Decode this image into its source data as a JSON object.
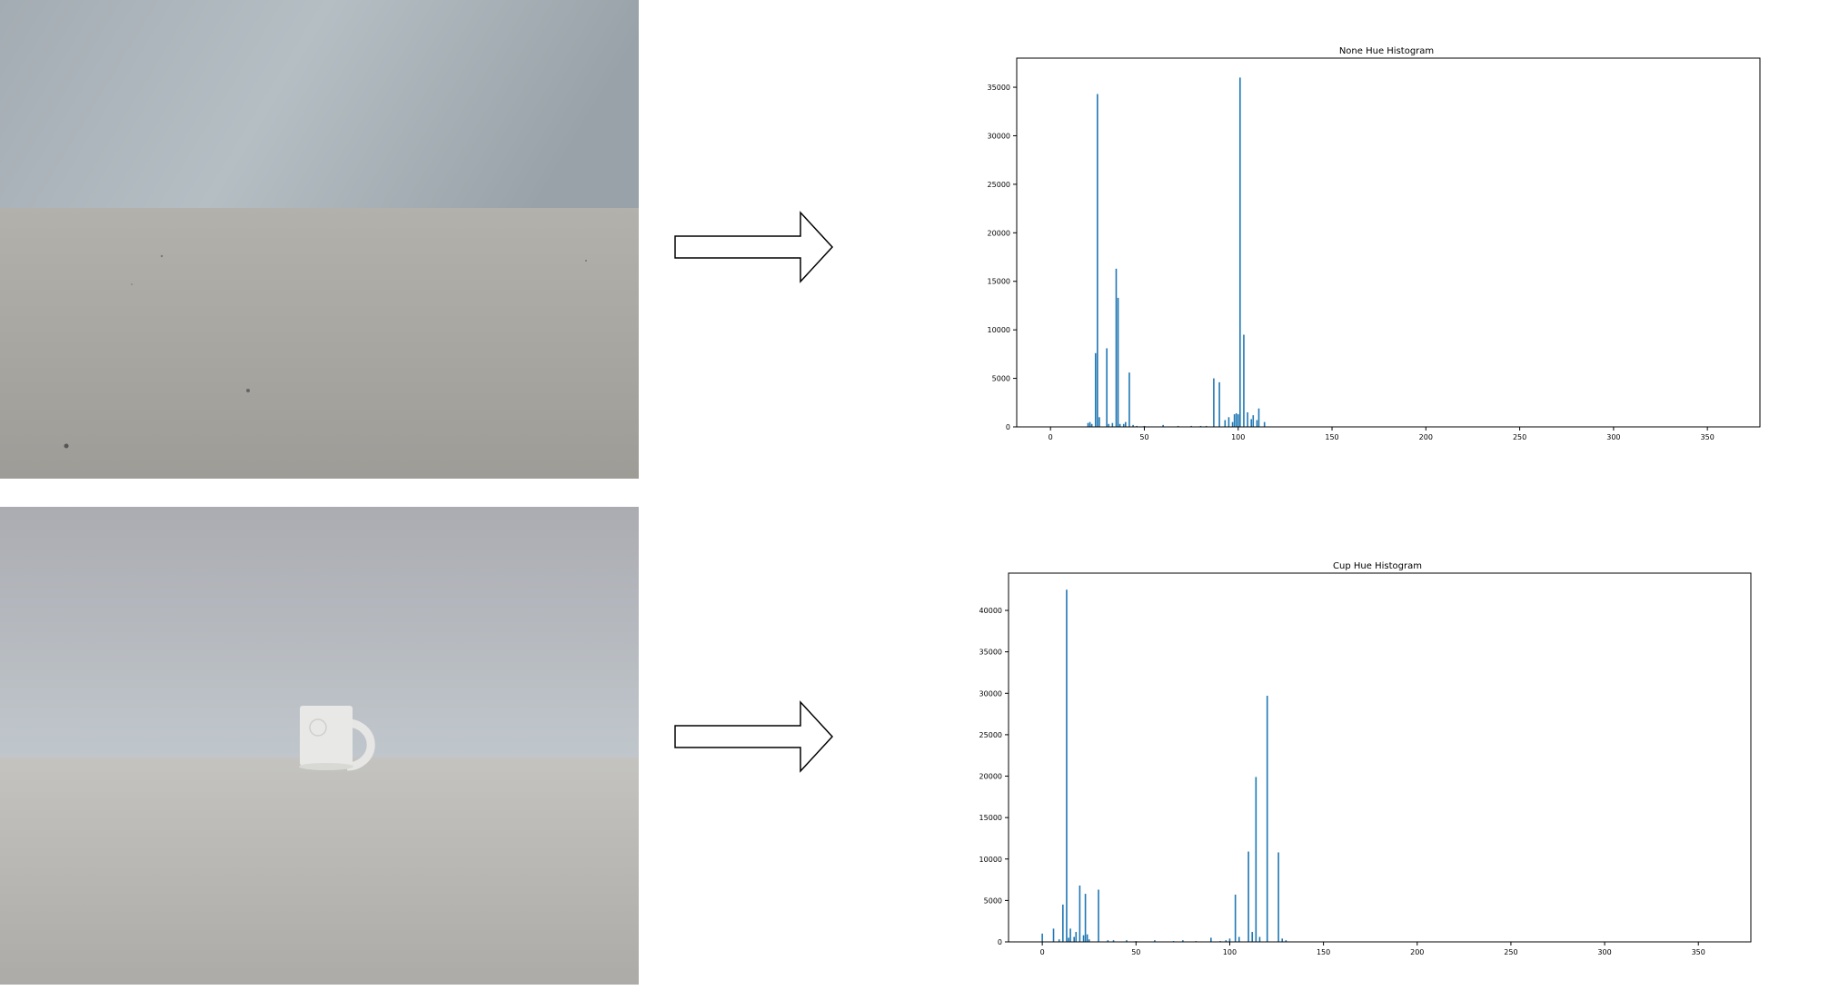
{
  "colors": {
    "bar": "#1f77b4",
    "axes": "#000000"
  },
  "images": [
    {
      "name": "background-photo",
      "description_icon": "photo-icon"
    },
    {
      "name": "cup-photo",
      "description_icon": "photo-icon"
    }
  ],
  "arrows": [
    "right-arrow-icon",
    "right-arrow-icon"
  ],
  "chart_data": [
    {
      "type": "bar",
      "title": "None Hue Histogram",
      "xlabel": "",
      "ylabel": "",
      "xlim": [
        -18,
        378
      ],
      "ylim": [
        0,
        38000
      ],
      "xticks": [
        0,
        50,
        100,
        150,
        200,
        250,
        300,
        350
      ],
      "yticks": [
        0,
        5000,
        10000,
        15000,
        20000,
        25000,
        30000,
        35000
      ],
      "grid": false,
      "bars": [
        {
          "x": 20,
          "y": 400
        },
        {
          "x": 21,
          "y": 500
        },
        {
          "x": 22,
          "y": 300
        },
        {
          "x": 24,
          "y": 7600
        },
        {
          "x": 25,
          "y": 34300
        },
        {
          "x": 26,
          "y": 1000
        },
        {
          "x": 30,
          "y": 8100
        },
        {
          "x": 31,
          "y": 300
        },
        {
          "x": 33,
          "y": 400
        },
        {
          "x": 35,
          "y": 16300
        },
        {
          "x": 36,
          "y": 13300
        },
        {
          "x": 37,
          "y": 300
        },
        {
          "x": 39,
          "y": 300
        },
        {
          "x": 40,
          "y": 500
        },
        {
          "x": 42,
          "y": 5600
        },
        {
          "x": 44,
          "y": 200
        },
        {
          "x": 46,
          "y": 100
        },
        {
          "x": 50,
          "y": 100
        },
        {
          "x": 60,
          "y": 200
        },
        {
          "x": 68,
          "y": 100
        },
        {
          "x": 75,
          "y": 100
        },
        {
          "x": 80,
          "y": 100
        },
        {
          "x": 83,
          "y": 100
        },
        {
          "x": 87,
          "y": 5000
        },
        {
          "x": 90,
          "y": 4600
        },
        {
          "x": 93,
          "y": 700
        },
        {
          "x": 95,
          "y": 1000
        },
        {
          "x": 97,
          "y": 500
        },
        {
          "x": 98,
          "y": 1300
        },
        {
          "x": 99,
          "y": 1400
        },
        {
          "x": 100,
          "y": 1300
        },
        {
          "x": 101,
          "y": 36000
        },
        {
          "x": 103,
          "y": 9500
        },
        {
          "x": 105,
          "y": 1500
        },
        {
          "x": 107,
          "y": 800
        },
        {
          "x": 108,
          "y": 1200
        },
        {
          "x": 110,
          "y": 700
        },
        {
          "x": 111,
          "y": 1900
        },
        {
          "x": 114,
          "y": 500
        }
      ]
    },
    {
      "type": "bar",
      "title": "Cup Hue Histogram",
      "xlabel": "",
      "ylabel": "",
      "xlim": [
        -18,
        378
      ],
      "ylim": [
        0,
        44500
      ],
      "xticks": [
        0,
        50,
        100,
        150,
        200,
        250,
        300,
        350
      ],
      "yticks": [
        0,
        5000,
        10000,
        15000,
        20000,
        25000,
        30000,
        35000,
        40000
      ],
      "grid": false,
      "bars": [
        {
          "x": 0,
          "y": 1000
        },
        {
          "x": 6,
          "y": 1600
        },
        {
          "x": 9,
          "y": 300
        },
        {
          "x": 11,
          "y": 4500
        },
        {
          "x": 13,
          "y": 42500
        },
        {
          "x": 14,
          "y": 500
        },
        {
          "x": 15,
          "y": 1600
        },
        {
          "x": 17,
          "y": 600
        },
        {
          "x": 18,
          "y": 1200
        },
        {
          "x": 20,
          "y": 6800
        },
        {
          "x": 22,
          "y": 800
        },
        {
          "x": 23,
          "y": 5800
        },
        {
          "x": 24,
          "y": 900
        },
        {
          "x": 25,
          "y": 300
        },
        {
          "x": 30,
          "y": 6300
        },
        {
          "x": 35,
          "y": 200
        },
        {
          "x": 38,
          "y": 200
        },
        {
          "x": 45,
          "y": 200
        },
        {
          "x": 50,
          "y": 100
        },
        {
          "x": 60,
          "y": 200
        },
        {
          "x": 70,
          "y": 100
        },
        {
          "x": 75,
          "y": 200
        },
        {
          "x": 82,
          "y": 100
        },
        {
          "x": 90,
          "y": 500
        },
        {
          "x": 95,
          "y": 100
        },
        {
          "x": 98,
          "y": 200
        },
        {
          "x": 100,
          "y": 400
        },
        {
          "x": 103,
          "y": 5700
        },
        {
          "x": 105,
          "y": 600
        },
        {
          "x": 110,
          "y": 10900
        },
        {
          "x": 112,
          "y": 1200
        },
        {
          "x": 114,
          "y": 19900
        },
        {
          "x": 116,
          "y": 600
        },
        {
          "x": 120,
          "y": 29700
        },
        {
          "x": 126,
          "y": 10800
        },
        {
          "x": 128,
          "y": 400
        },
        {
          "x": 130,
          "y": 200
        }
      ]
    }
  ]
}
